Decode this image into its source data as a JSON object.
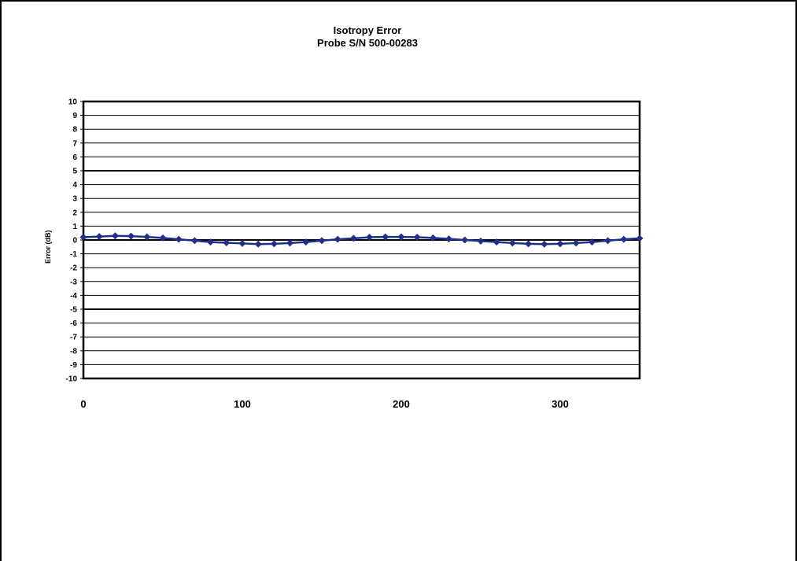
{
  "chart_data": {
    "type": "line",
    "title": "Isotropy Error",
    "subtitle": "Probe S/N 500-00283",
    "xlabel": "",
    "ylabel": "Error (dB)",
    "xlim": [
      0,
      350
    ],
    "ylim": [
      -10,
      10
    ],
    "x_ticks": [
      0,
      100,
      200,
      300
    ],
    "y_ticks": [
      10,
      9,
      8,
      7,
      6,
      5,
      4,
      3,
      2,
      1,
      0,
      -1,
      -2,
      -3,
      -4,
      -5,
      -6,
      -7,
      -8,
      -9,
      -10
    ],
    "grid": true,
    "legend": "none",
    "colors": {
      "series": "#1F2F8C",
      "grid": "#000000",
      "frame": "#000000"
    },
    "series": [
      {
        "x": [
          0,
          10,
          20,
          30,
          40,
          50,
          60,
          70,
          80,
          90,
          100,
          110,
          120,
          130,
          140,
          150,
          160,
          170,
          180,
          190,
          200,
          210,
          220,
          230,
          240,
          250,
          260,
          270,
          280,
          290,
          300,
          310,
          320,
          330,
          340,
          350
        ],
        "values": [
          0.2,
          0.25,
          0.3,
          0.28,
          0.22,
          0.15,
          0.05,
          -0.05,
          -0.15,
          -0.2,
          -0.25,
          -0.3,
          -0.28,
          -0.22,
          -0.15,
          -0.05,
          0.05,
          0.12,
          0.2,
          0.22,
          0.22,
          0.2,
          0.15,
          0.08,
          0.0,
          -0.08,
          -0.15,
          -0.22,
          -0.28,
          -0.3,
          -0.28,
          -0.22,
          -0.15,
          -0.05,
          0.05,
          0.12
        ]
      }
    ]
  }
}
